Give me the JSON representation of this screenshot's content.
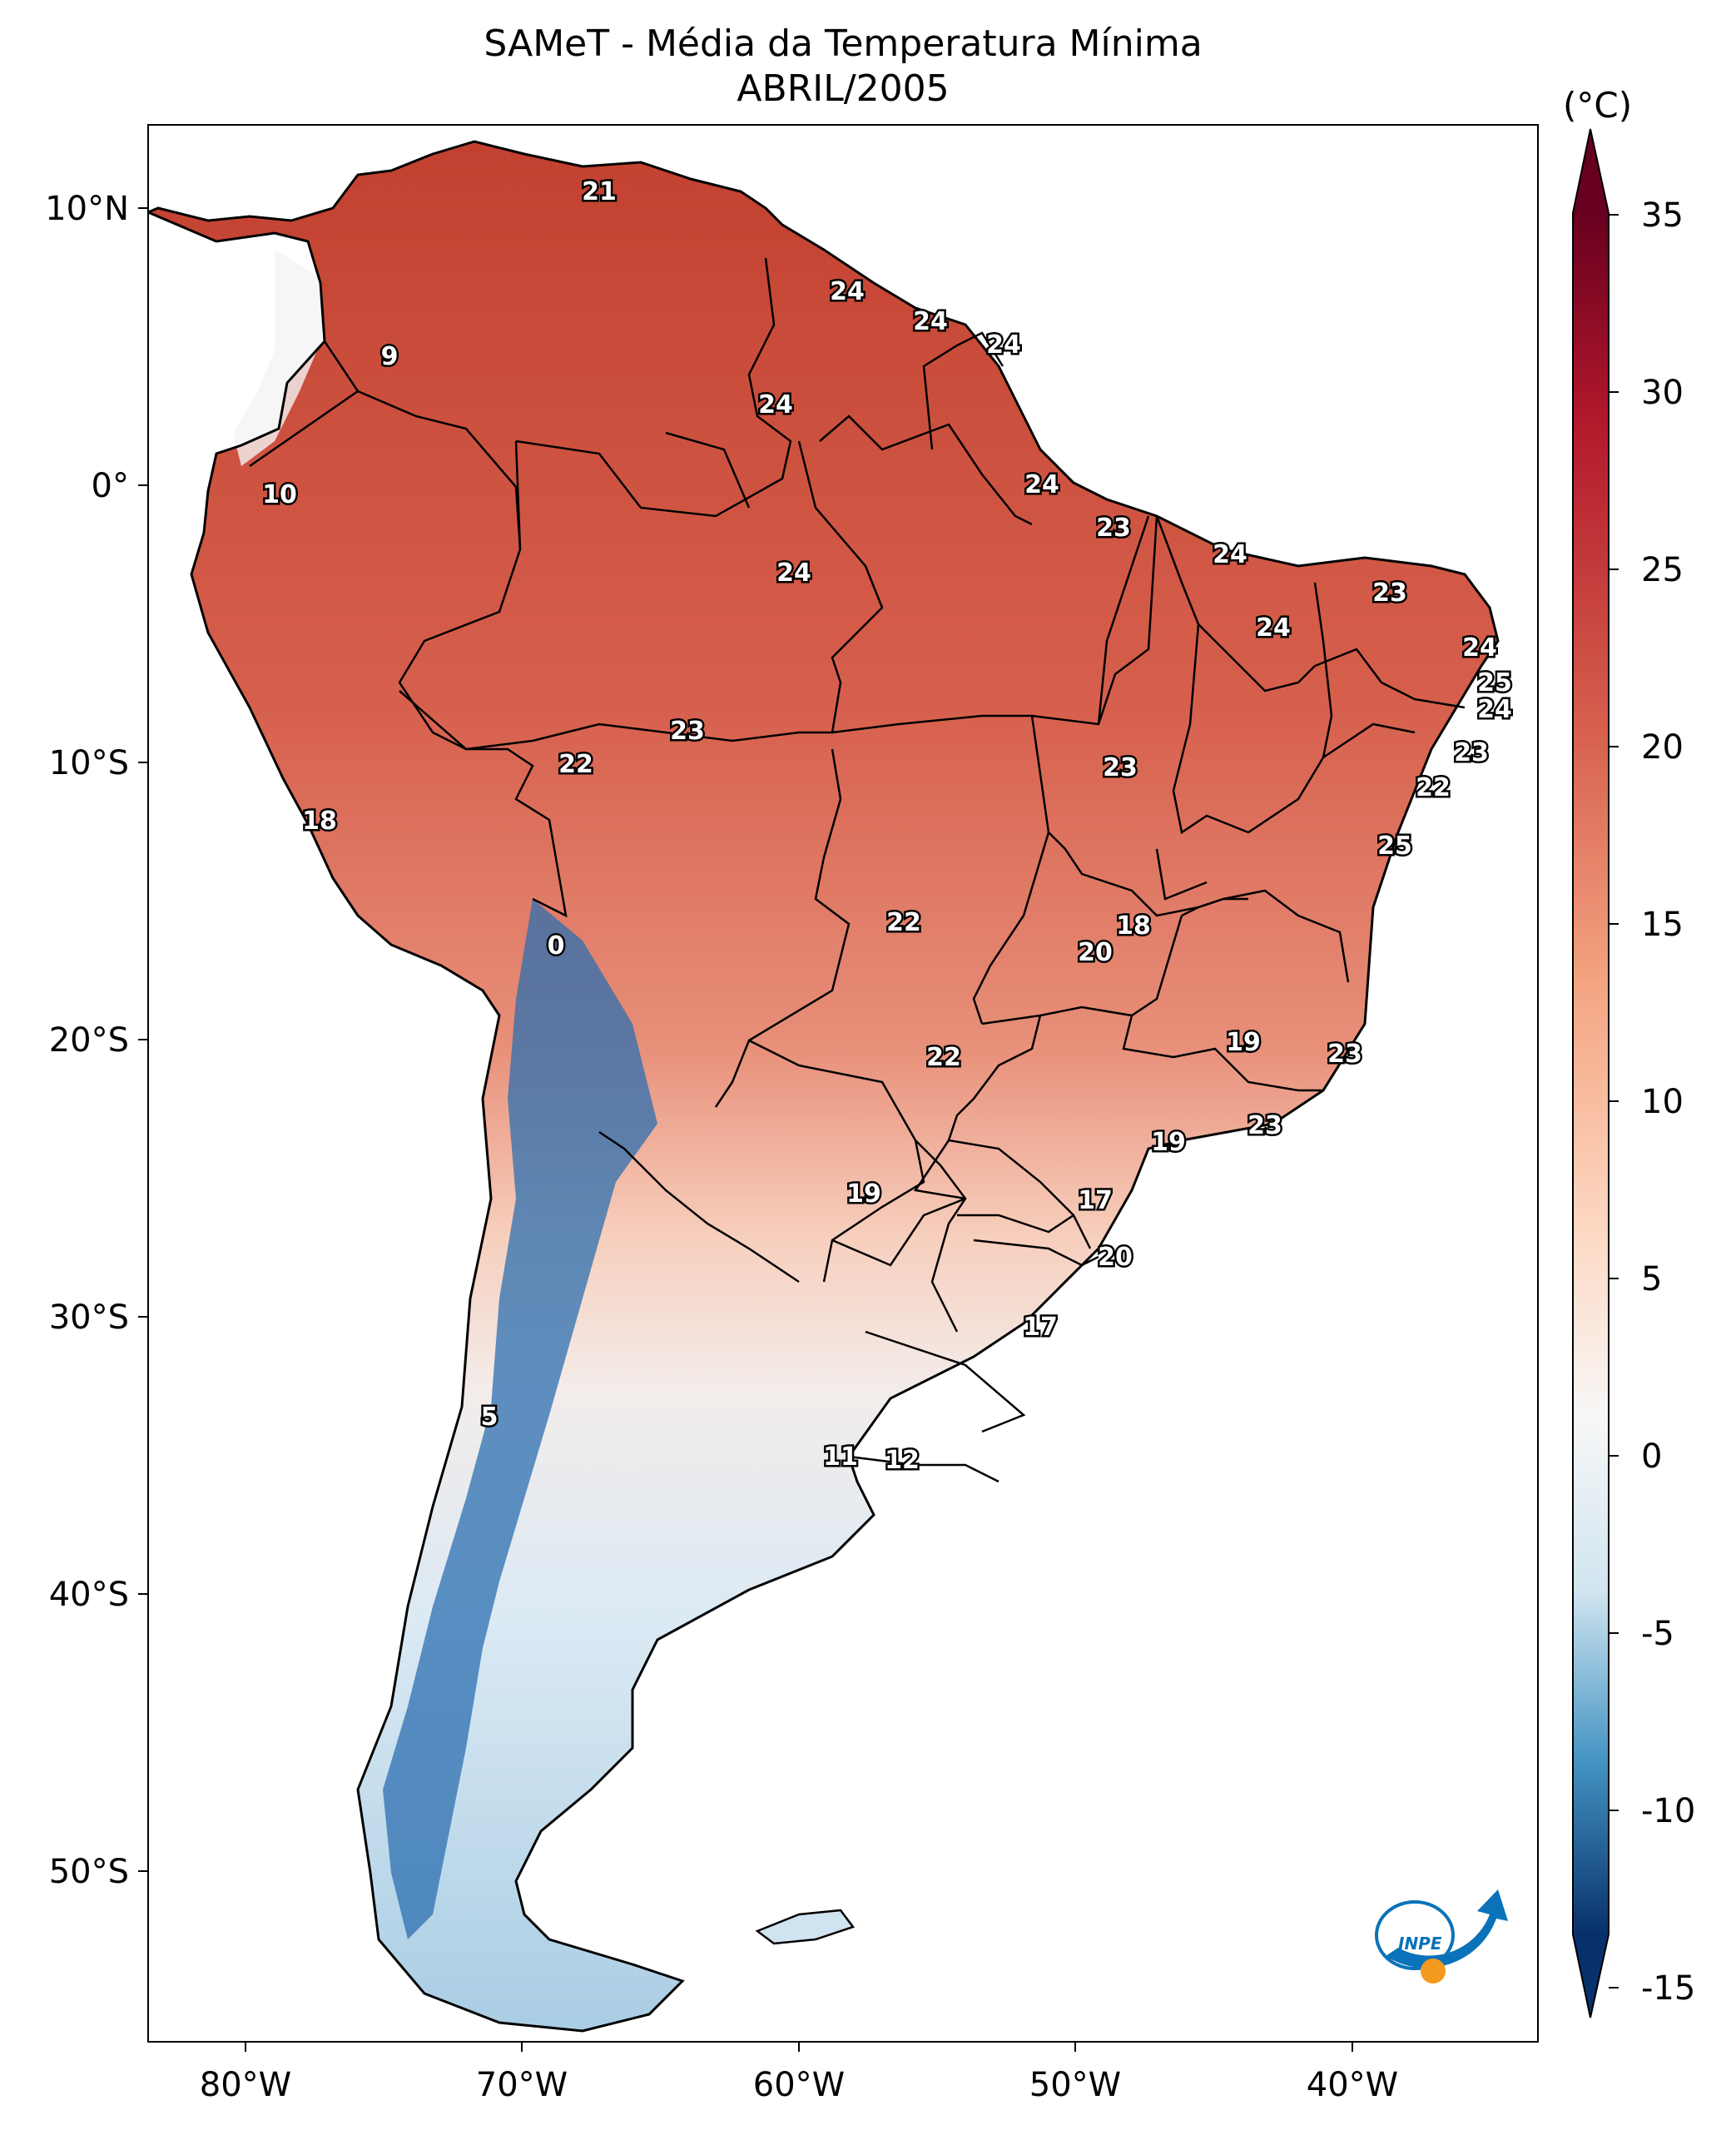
{
  "map": {
    "title": "SAMeT - Média da Temperatura Mínima",
    "subtitle": "ABRIL/2005",
    "longitude_labels": [
      "80°W",
      "70°W",
      "60°W",
      "50°W",
      "40°W"
    ],
    "latitude_labels": [
      "10°N",
      "0°",
      "10°S",
      "20°S",
      "30°S",
      "40°S",
      "50°S"
    ],
    "value_labels": [
      "21",
      "24",
      "24",
      "24",
      "24",
      "9",
      "10",
      "24",
      "24",
      "23",
      "24",
      "23",
      "24",
      "24",
      "25",
      "24",
      "23",
      "22",
      "23",
      "22",
      "18",
      "23",
      "25",
      "22",
      "18",
      "20",
      "0",
      "19",
      "22",
      "23",
      "23",
      "19",
      "19",
      "17",
      "20",
      "17",
      "5",
      "11",
      "12"
    ],
    "colorbar": {
      "unit": "(°C)",
      "tick_labels": [
        "35",
        "30",
        "25",
        "20",
        "15",
        "10",
        "5",
        "0",
        "-5",
        "-10",
        "-15"
      ],
      "colors": {
        "min": "#08306b",
        "cold": "#2166ac",
        "mid": "#f7f7f7",
        "warm": "#d6604d",
        "max": "#67001f"
      }
    },
    "logo_text": "INPE"
  }
}
